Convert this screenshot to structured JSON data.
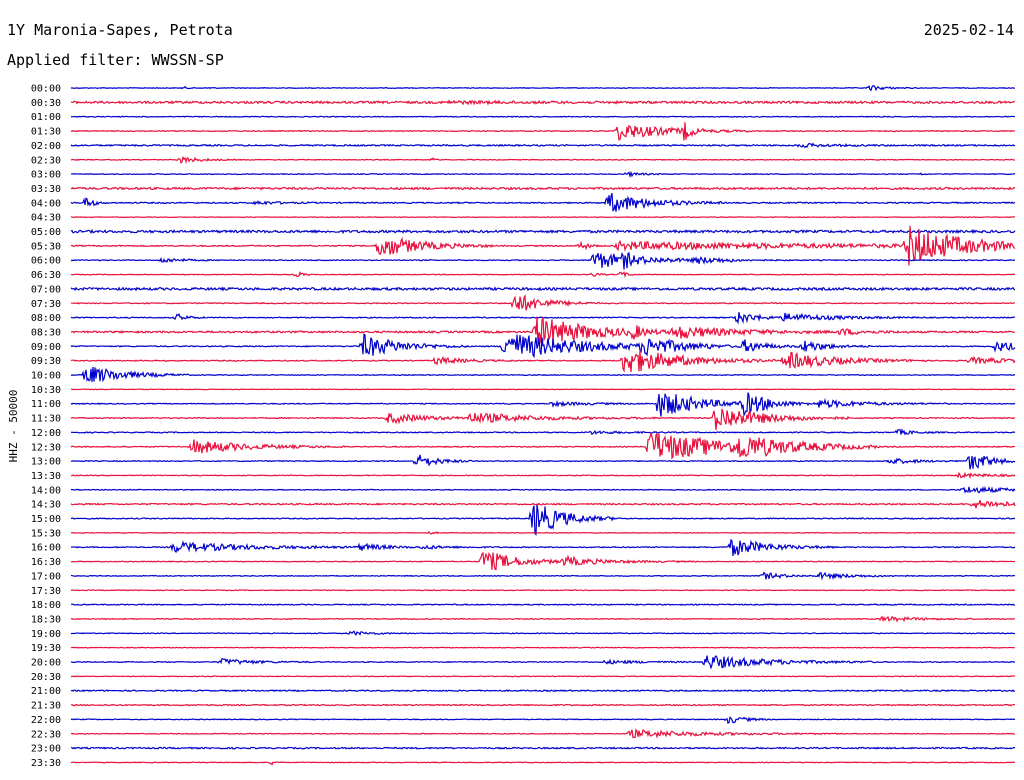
{
  "header": {
    "station": "1Y Maronia-Sapes, Petrota",
    "date": "2025-02-14",
    "filter": "Applied filter: WWSSN-SP"
  },
  "chart_data": {
    "type": "line",
    "title": "1Y Maronia-Sapes, Petrota",
    "ylabel": "HHZ - 50000",
    "x_range_minutes": [
      0,
      30
    ],
    "colors": {
      "even": "#0000cc",
      "odd": "#e8103c"
    },
    "rows": [
      {
        "label": "00:00",
        "noise": 0.35,
        "events": [
          {
            "t": 3.6,
            "a": 1.2,
            "d": 0.1
          },
          {
            "t": 4.4,
            "a": 0.8,
            "d": 0.1
          },
          {
            "t": 25.4,
            "a": 2.6,
            "d": 0.5
          }
        ]
      },
      {
        "label": "00:30",
        "noise": 1.1,
        "events": [
          {
            "t": 12,
            "a": 0.9,
            "d": 2
          }
        ]
      },
      {
        "label": "01:00",
        "noise": 0.4,
        "events": []
      },
      {
        "label": "01:30",
        "noise": 0.45,
        "events": [
          {
            "t": 17.4,
            "a": 9,
            "d": 1.4
          },
          {
            "t": 19.5,
            "a": 8,
            "d": 0.2
          }
        ]
      },
      {
        "label": "02:00",
        "noise": 0.7,
        "events": [
          {
            "t": 23.2,
            "a": 1.6,
            "d": 1.0
          }
        ]
      },
      {
        "label": "02:30",
        "noise": 0.4,
        "events": [
          {
            "t": 3.5,
            "a": 3,
            "d": 0.6
          },
          {
            "t": 11.5,
            "a": 1.4,
            "d": 0.1
          }
        ]
      },
      {
        "label": "03:00",
        "noise": 0.4,
        "events": [
          {
            "t": 17.7,
            "a": 2,
            "d": 0.4
          },
          {
            "t": 27,
            "a": 1,
            "d": 0.1
          }
        ]
      },
      {
        "label": "03:30",
        "noise": 1.0,
        "events": []
      },
      {
        "label": "04:00",
        "noise": 0.6,
        "events": [
          {
            "t": 0.5,
            "a": 6,
            "d": 0.2
          },
          {
            "t": 17.1,
            "a": 10,
            "d": 1.2
          },
          {
            "t": 5.9,
            "a": 1.6,
            "d": 0.7
          }
        ]
      },
      {
        "label": "04:30",
        "noise": 0.3,
        "events": []
      },
      {
        "label": "05:00",
        "noise": 1.2,
        "events": []
      },
      {
        "label": "05:30",
        "noise": 0.6,
        "events": [
          {
            "t": 9.8,
            "a": 12,
            "d": 1.2
          },
          {
            "t": 17.4,
            "a": 4,
            "d": 7.5
          },
          {
            "t": 26.6,
            "a": 20,
            "d": 1.6
          },
          {
            "t": 16.2,
            "a": 5,
            "d": 0.2
          }
        ]
      },
      {
        "label": "06:00",
        "noise": 0.45,
        "events": [
          {
            "t": 2.9,
            "a": 2.4,
            "d": 0.6
          },
          {
            "t": 16.6,
            "a": 9,
            "d": 1.5
          },
          {
            "t": 19.9,
            "a": 2.5,
            "d": 1.0
          },
          {
            "t": 17.6,
            "a": 5,
            "d": 0.2
          }
        ]
      },
      {
        "label": "06:30",
        "noise": 0.35,
        "events": [
          {
            "t": 7.2,
            "a": 2.6,
            "d": 0.2
          },
          {
            "t": 17.5,
            "a": 3,
            "d": 0.2
          },
          {
            "t": 16.6,
            "a": 2,
            "d": 0.2
          }
        ]
      },
      {
        "label": "07:00",
        "noise": 1.2,
        "events": []
      },
      {
        "label": "07:30",
        "noise": 0.5,
        "events": [
          {
            "t": 14.1,
            "a": 10,
            "d": 0.9
          }
        ]
      },
      {
        "label": "08:00",
        "noise": 0.5,
        "events": [
          {
            "t": 3.4,
            "a": 3.5,
            "d": 0.3
          },
          {
            "t": 21.2,
            "a": 6,
            "d": 0.6
          },
          {
            "t": 22.7,
            "a": 4,
            "d": 1.5
          }
        ]
      },
      {
        "label": "08:30",
        "noise": 0.9,
        "events": [
          {
            "t": 14.8,
            "a": 16,
            "d": 1.6
          },
          {
            "t": 19.2,
            "a": 6,
            "d": 1.8
          },
          {
            "t": 24.5,
            "a": 3,
            "d": 0.7
          },
          {
            "t": 17.9,
            "a": 6,
            "d": 0.2
          }
        ]
      },
      {
        "label": "09:00",
        "noise": 0.5,
        "events": [
          {
            "t": 9.3,
            "a": 12,
            "d": 1.1
          },
          {
            "t": 13.8,
            "a": 15,
            "d": 2.2
          },
          {
            "t": 18.2,
            "a": 8,
            "d": 1.2
          },
          {
            "t": 21.4,
            "a": 6,
            "d": 0.7
          },
          {
            "t": 23.3,
            "a": 6,
            "d": 0.7
          },
          {
            "t": 29.4,
            "a": 5,
            "d": 0.9
          }
        ]
      },
      {
        "label": "09:30",
        "noise": 0.5,
        "events": [
          {
            "t": 11.6,
            "a": 3.5,
            "d": 0.9
          },
          {
            "t": 17.6,
            "a": 14,
            "d": 1.6
          },
          {
            "t": 22.7,
            "a": 9,
            "d": 1.5
          },
          {
            "t": 28.6,
            "a": 3,
            "d": 1.5
          }
        ]
      },
      {
        "label": "10:00",
        "noise": 0.4,
        "events": [
          {
            "t": 0.5,
            "a": 10,
            "d": 1.1
          }
        ]
      },
      {
        "label": "10:30",
        "noise": 0.3,
        "events": []
      },
      {
        "label": "11:00",
        "noise": 0.45,
        "events": [
          {
            "t": 18.7,
            "a": 14,
            "d": 1.2
          },
          {
            "t": 21.4,
            "a": 11,
            "d": 0.8
          },
          {
            "t": 23.8,
            "a": 4,
            "d": 1.4
          },
          {
            "t": 15.3,
            "a": 2,
            "d": 1.2
          }
        ]
      },
      {
        "label": "11:30",
        "noise": 0.5,
        "events": [
          {
            "t": 10.1,
            "a": 5,
            "d": 1.2
          },
          {
            "t": 12.7,
            "a": 5,
            "d": 2.0
          },
          {
            "t": 20.5,
            "a": 13,
            "d": 1.4
          }
        ]
      },
      {
        "label": "12:00",
        "noise": 0.5,
        "events": [
          {
            "t": 26.3,
            "a": 2.5,
            "d": 0.5
          },
          {
            "t": 16.5,
            "a": 1.5,
            "d": 1.0
          }
        ]
      },
      {
        "label": "12:30",
        "noise": 0.5,
        "events": [
          {
            "t": 3.9,
            "a": 7,
            "d": 1.6
          },
          {
            "t": 18.4,
            "a": 16,
            "d": 2.4
          },
          {
            "t": 21.2,
            "a": 9,
            "d": 1.5
          }
        ]
      },
      {
        "label": "13:00",
        "noise": 0.45,
        "events": [
          {
            "t": 11.0,
            "a": 7,
            "d": 0.6
          },
          {
            "t": 26.0,
            "a": 3,
            "d": 0.8
          },
          {
            "t": 28.6,
            "a": 10,
            "d": 0.6
          }
        ]
      },
      {
        "label": "13:30",
        "noise": 0.4,
        "events": [
          {
            "t": 28.2,
            "a": 2,
            "d": 1.2
          }
        ]
      },
      {
        "label": "14:00",
        "noise": 0.4,
        "events": [
          {
            "t": 28.4,
            "a": 3.5,
            "d": 1.3
          }
        ]
      },
      {
        "label": "14:30",
        "noise": 0.7,
        "events": [
          {
            "t": 28.7,
            "a": 4,
            "d": 1.2
          }
        ]
      },
      {
        "label": "15:00",
        "noise": 0.5,
        "events": [
          {
            "t": 14.7,
            "a": 18,
            "d": 0.9
          }
        ]
      },
      {
        "label": "15:30",
        "noise": 0.3,
        "events": [
          {
            "t": 11.4,
            "a": 1.2,
            "d": 0.2
          }
        ]
      },
      {
        "label": "16:00",
        "noise": 0.5,
        "events": [
          {
            "t": 3.3,
            "a": 5,
            "d": 2.3
          },
          {
            "t": 9.2,
            "a": 3,
            "d": 0.8
          },
          {
            "t": 11.2,
            "a": 1.6,
            "d": 0.8
          },
          {
            "t": 21.0,
            "a": 9,
            "d": 1.1
          }
        ]
      },
      {
        "label": "16:30",
        "noise": 0.4,
        "events": [
          {
            "t": 13.1,
            "a": 12,
            "d": 1.0
          },
          {
            "t": 15.7,
            "a": 4,
            "d": 1.4
          }
        ]
      },
      {
        "label": "17:00",
        "noise": 0.4,
        "events": [
          {
            "t": 22.0,
            "a": 3.5,
            "d": 0.6
          },
          {
            "t": 23.8,
            "a": 3,
            "d": 1.0
          }
        ]
      },
      {
        "label": "17:30",
        "noise": 0.35,
        "events": []
      },
      {
        "label": "18:00",
        "noise": 0.5,
        "events": []
      },
      {
        "label": "18:30",
        "noise": 0.45,
        "events": [
          {
            "t": 25.8,
            "a": 2.5,
            "d": 1.0
          }
        ]
      },
      {
        "label": "19:00",
        "noise": 0.4,
        "events": [
          {
            "t": 8.9,
            "a": 2,
            "d": 0.7
          }
        ]
      },
      {
        "label": "19:30",
        "noise": 0.35,
        "events": []
      },
      {
        "label": "20:00",
        "noise": 0.45,
        "events": [
          {
            "t": 4.8,
            "a": 3,
            "d": 1.0
          },
          {
            "t": 20.2,
            "a": 7,
            "d": 1.8
          },
          {
            "t": 17.0,
            "a": 1.6,
            "d": 1.3
          }
        ]
      },
      {
        "label": "20:30",
        "noise": 0.35,
        "events": []
      },
      {
        "label": "21:00",
        "noise": 0.6,
        "events": []
      },
      {
        "label": "21:30",
        "noise": 0.6,
        "events": []
      },
      {
        "label": "22:00",
        "noise": 0.4,
        "events": [
          {
            "t": 20.9,
            "a": 4,
            "d": 0.5
          }
        ]
      },
      {
        "label": "22:30",
        "noise": 0.4,
        "events": [
          {
            "t": 17.8,
            "a": 4,
            "d": 2.2
          }
        ]
      },
      {
        "label": "23:00",
        "noise": 0.7,
        "events": []
      },
      {
        "label": "23:30",
        "noise": 0.35,
        "events": [
          {
            "t": 6.4,
            "a": 2,
            "d": 0.1
          }
        ]
      }
    ]
  }
}
